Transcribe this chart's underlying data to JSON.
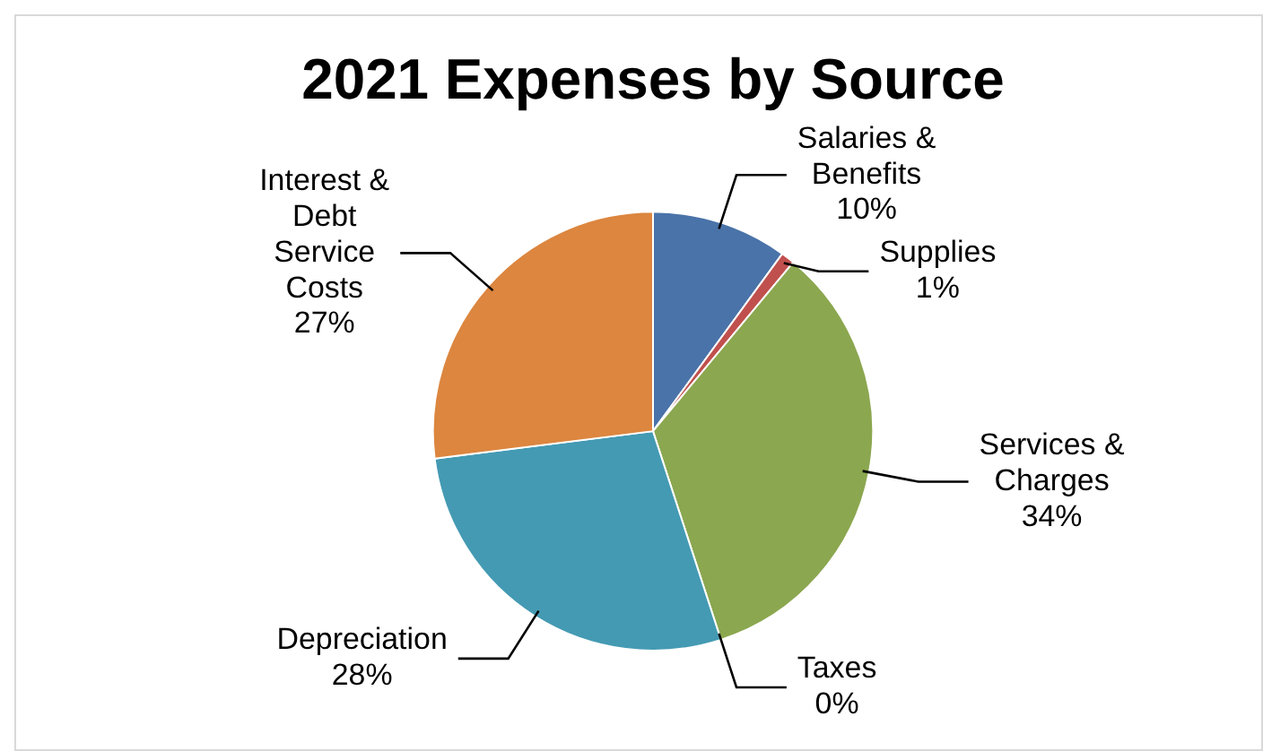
{
  "chart_data": {
    "type": "pie",
    "title": "2021 Expenses by Source",
    "categories": [
      "Salaries & Benefits",
      "Supplies",
      "Services & Charges",
      "Taxes",
      "Depreciation",
      "Interest & Debt Service Costs"
    ],
    "values": [
      10,
      1,
      34,
      0,
      28,
      27
    ],
    "colors": [
      "#4a73a9",
      "#c0504d",
      "#8ba74f",
      "#7a5e98",
      "#449ab3",
      "#dc863f"
    ],
    "value_labels": [
      "10%",
      "1%",
      "34%",
      "0%",
      "28%",
      "27%"
    ]
  }
}
